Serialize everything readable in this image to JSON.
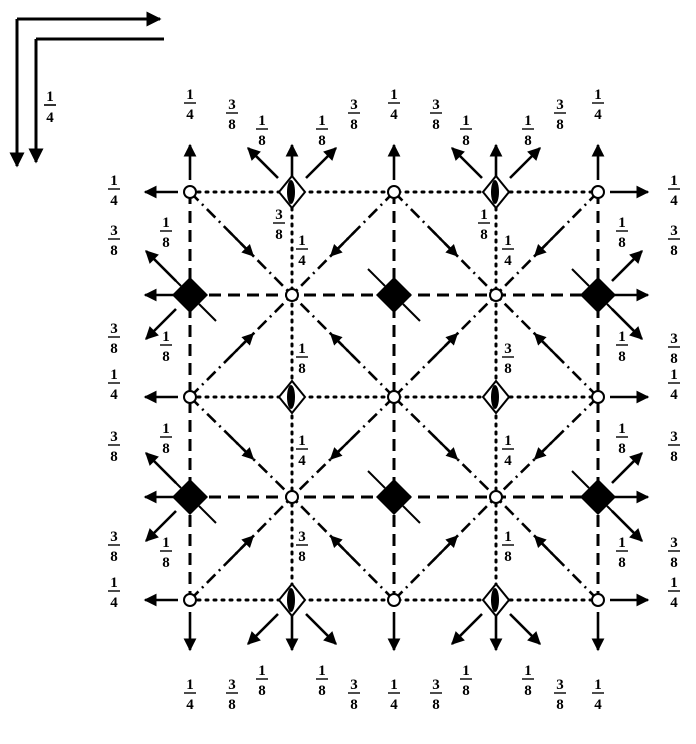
{
  "axes": {
    "x_arrow": "axis-arrow-x",
    "y_arrow": "axis-arrow-y",
    "origin_label": "1/4"
  },
  "grid": {
    "corners": [
      "0,0",
      "0,1",
      "1,0",
      "1,1"
    ],
    "edge_midpoints": [
      "0,0.5",
      "1,0.5",
      "0.5,0",
      "0.5,1"
    ],
    "center": "0.5,0.5"
  },
  "labels": {
    "quarter": {
      "num": "1",
      "den": "4"
    },
    "eighth": {
      "num": "1",
      "den": "8"
    },
    "three_eighths": {
      "num": "3",
      "den": "8"
    }
  },
  "symbols": {
    "inversion_center": "small-open-circle",
    "fourfold_inversion_axis": "filled-square-with-bars",
    "twofold_axis_on_diamond": "half-filled-diamond"
  },
  "colors": {
    "ink": "#000000",
    "paper": "#ffffff"
  }
}
